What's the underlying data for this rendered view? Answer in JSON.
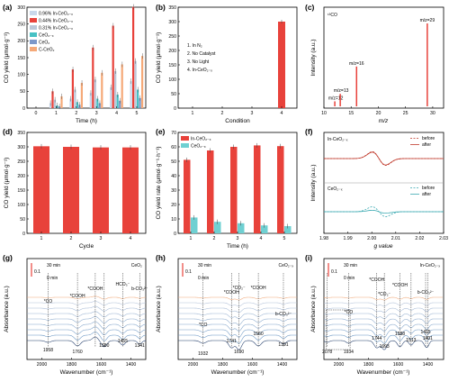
{
  "figure": {
    "panel_labels": [
      "(a)",
      "(b)",
      "(c)",
      "(d)",
      "(e)",
      "(f)",
      "(g)",
      "(h)",
      "(i)"
    ]
  },
  "chart_data": [
    {
      "panel": "(a)",
      "type": "bar",
      "xlabel": "Time (h)",
      "ylabel": "CO yield (μmol·g⁻¹)",
      "ylim": [
        0,
        300
      ],
      "yticks": [
        "0",
        "50",
        "100",
        "150",
        "200",
        "250",
        "300"
      ],
      "xticks": [
        "0",
        "1",
        "2",
        "3",
        "4",
        "5"
      ],
      "categories": [
        "1",
        "2",
        "3",
        "4",
        "5"
      ],
      "legend_position": "top-left",
      "series": [
        {
          "name": "0.96% In-CeO₂₋ₓ",
          "color": "#c9d8ea",
          "values": [
            15,
            28,
            45,
            62,
            80
          ]
        },
        {
          "name": "0.44% In-CeO₂₋ₓ",
          "color": "#e8423b",
          "values": [
            50,
            115,
            180,
            245,
            301
          ]
        },
        {
          "name": "0.31% In-CeO₂₋ₓ",
          "color": "#bcc7d8",
          "values": [
            25,
            55,
            85,
            110,
            140
          ]
        },
        {
          "name": "CeO₂₋ₓ",
          "color": "#47c1c4",
          "values": [
            8,
            18,
            28,
            40,
            55
          ]
        },
        {
          "name": "CeO₂",
          "color": "#7c98c9",
          "values": [
            5,
            10,
            15,
            22,
            30
          ]
        },
        {
          "name": "C-CeO₂",
          "color": "#f5a978",
          "values": [
            35,
            75,
            105,
            130,
            155
          ]
        }
      ]
    },
    {
      "panel": "(b)",
      "type": "bar",
      "xlabel": "Condition",
      "ylabel": "CO yield (μmol·g⁻¹)",
      "ylim": [
        0,
        350
      ],
      "yticks": [
        "0",
        "50",
        "100",
        "150",
        "200",
        "250",
        "300",
        "350"
      ],
      "categories": [
        "1",
        "2",
        "3",
        "4"
      ],
      "values": [
        0,
        0,
        0,
        300
      ],
      "color": "#e8423b",
      "annotations": [
        "1. In N₂",
        "2. No Catalyst",
        "3. No Light",
        "4. In-CeO₂₋ₓ"
      ]
    },
    {
      "panel": "(c)",
      "type": "bar",
      "title": "¹³CO",
      "xlabel": "m/z",
      "ylabel": "Intensity (a.u.)",
      "xlim": [
        10,
        32
      ],
      "xticks": [
        "10",
        "15",
        "20",
        "25",
        "30"
      ],
      "peaks": [
        {
          "x": 12,
          "y": 0.06,
          "label": "m/z=12",
          "color": "#e8423b"
        },
        {
          "x": 13,
          "y": 0.15,
          "label": "m/z=13",
          "color": "#e8423b"
        },
        {
          "x": 16,
          "y": 0.48,
          "label": "m/z=16",
          "color": "#e8423b"
        },
        {
          "x": 29,
          "y": 1.0,
          "label": "m/z=29",
          "color": "#e8423b"
        }
      ]
    },
    {
      "panel": "(d)",
      "type": "bar",
      "xlabel": "Cycle",
      "ylabel": "CO yield (μmol·g⁻¹)",
      "ylim": [
        0,
        350
      ],
      "yticks": [
        "0",
        "50",
        "100",
        "150",
        "200",
        "250",
        "300",
        "350"
      ],
      "categories": [
        "1",
        "2",
        "3",
        "4"
      ],
      "values": [
        302,
        300,
        298,
        298
      ],
      "color": "#e8423b"
    },
    {
      "panel": "(e)",
      "type": "bar",
      "xlabel": "Time (h)",
      "ylabel": "CO yield rate (μmol·g⁻¹·h⁻¹)",
      "ylim": [
        0,
        70
      ],
      "yticks": [
        "0",
        "10",
        "20",
        "30",
        "40",
        "50",
        "60",
        "70"
      ],
      "categories": [
        "1",
        "2",
        "3",
        "4",
        "5"
      ],
      "legend_position": "top-left",
      "series": [
        {
          "name": "In-CeO₂₋ₓ",
          "color": "#e8423b",
          "values": [
            51,
            57.5,
            60,
            61,
            60.5
          ]
        },
        {
          "name": "CeO₂₋ₓ",
          "color": "#6fd0d2",
          "values": [
            11,
            8,
            7,
            5.5,
            5
          ]
        }
      ]
    },
    {
      "panel": "(f)",
      "type": "line",
      "xlabel": "g value",
      "ylabel": "Intensity (a.u.)",
      "xlim": [
        1.98,
        2.03
      ],
      "xticks": [
        "1.98",
        "1.99",
        "2.00",
        "2.01",
        "2.02",
        "2.03"
      ],
      "series": [
        {
          "name": "In-CeO₂₋ₓ",
          "labels": [
            "before",
            "after"
          ],
          "colors": [
            "#c0392b",
            "#c0392b"
          ]
        },
        {
          "name": "CeO₂₋ₓ",
          "labels": [
            "before",
            "after"
          ],
          "colors": [
            "#3aa9b1",
            "#3aa9b1"
          ]
        }
      ]
    },
    {
      "panel": "(g)",
      "type": "line",
      "xlabel": "Wavenumber (cm⁻¹)",
      "ylabel": "Absorbance (a.u.)",
      "sample": "CeO₂",
      "xlim": [
        2100,
        1300
      ],
      "xticks": [
        "2000",
        "1800",
        "1600",
        "1400"
      ],
      "scale": "0.1",
      "time_labels": [
        "30 min",
        "0 min"
      ],
      "peak_labels": [
        "*CO",
        "*COOH",
        "*COOH",
        "HCO₃⁻",
        "b-CO₃²⁻"
      ],
      "wavenumbers": [
        "1958",
        "1760",
        "1580",
        "1455",
        "1341"
      ]
    },
    {
      "panel": "(h)",
      "type": "line",
      "xlabel": "Wavenumber (cm⁻¹)",
      "ylabel": "Absorbance (a.u.)",
      "sample": "CeO₂₋ₓ",
      "xlim": [
        2100,
        1300
      ],
      "xticks": [
        "2000",
        "1800",
        "1600",
        "1400"
      ],
      "scale": "0.1",
      "time_labels": [
        "30 min",
        "0 min"
      ],
      "peak_labels": [
        "*CO",
        "*COOH",
        "*CO₂⁻",
        "*COOH",
        "b-CO₃²⁻"
      ],
      "wavenumbers": [
        "1932",
        "1741",
        "1690",
        "1560",
        "1391"
      ]
    },
    {
      "panel": "(i)",
      "type": "line",
      "xlabel": "Wavenumber (cm⁻¹)",
      "ylabel": "Absorbance (a.u.)",
      "sample": "In-CeO₂₋ₓ",
      "xlim": [
        2100,
        1300
      ],
      "xticks": [
        "2000",
        "1800",
        "1600",
        "1400"
      ],
      "scale": "0.1",
      "time_labels": [
        "30 min",
        "0 min"
      ],
      "peak_labels": [
        "*CO",
        "*COOH",
        "*CO₂⁻",
        "*COOH",
        "b-CO₃²⁻"
      ],
      "wavenumbers": [
        "2078",
        "1934",
        "1744",
        "1693",
        "1588",
        "1513",
        "1415",
        "1401"
      ]
    }
  ]
}
